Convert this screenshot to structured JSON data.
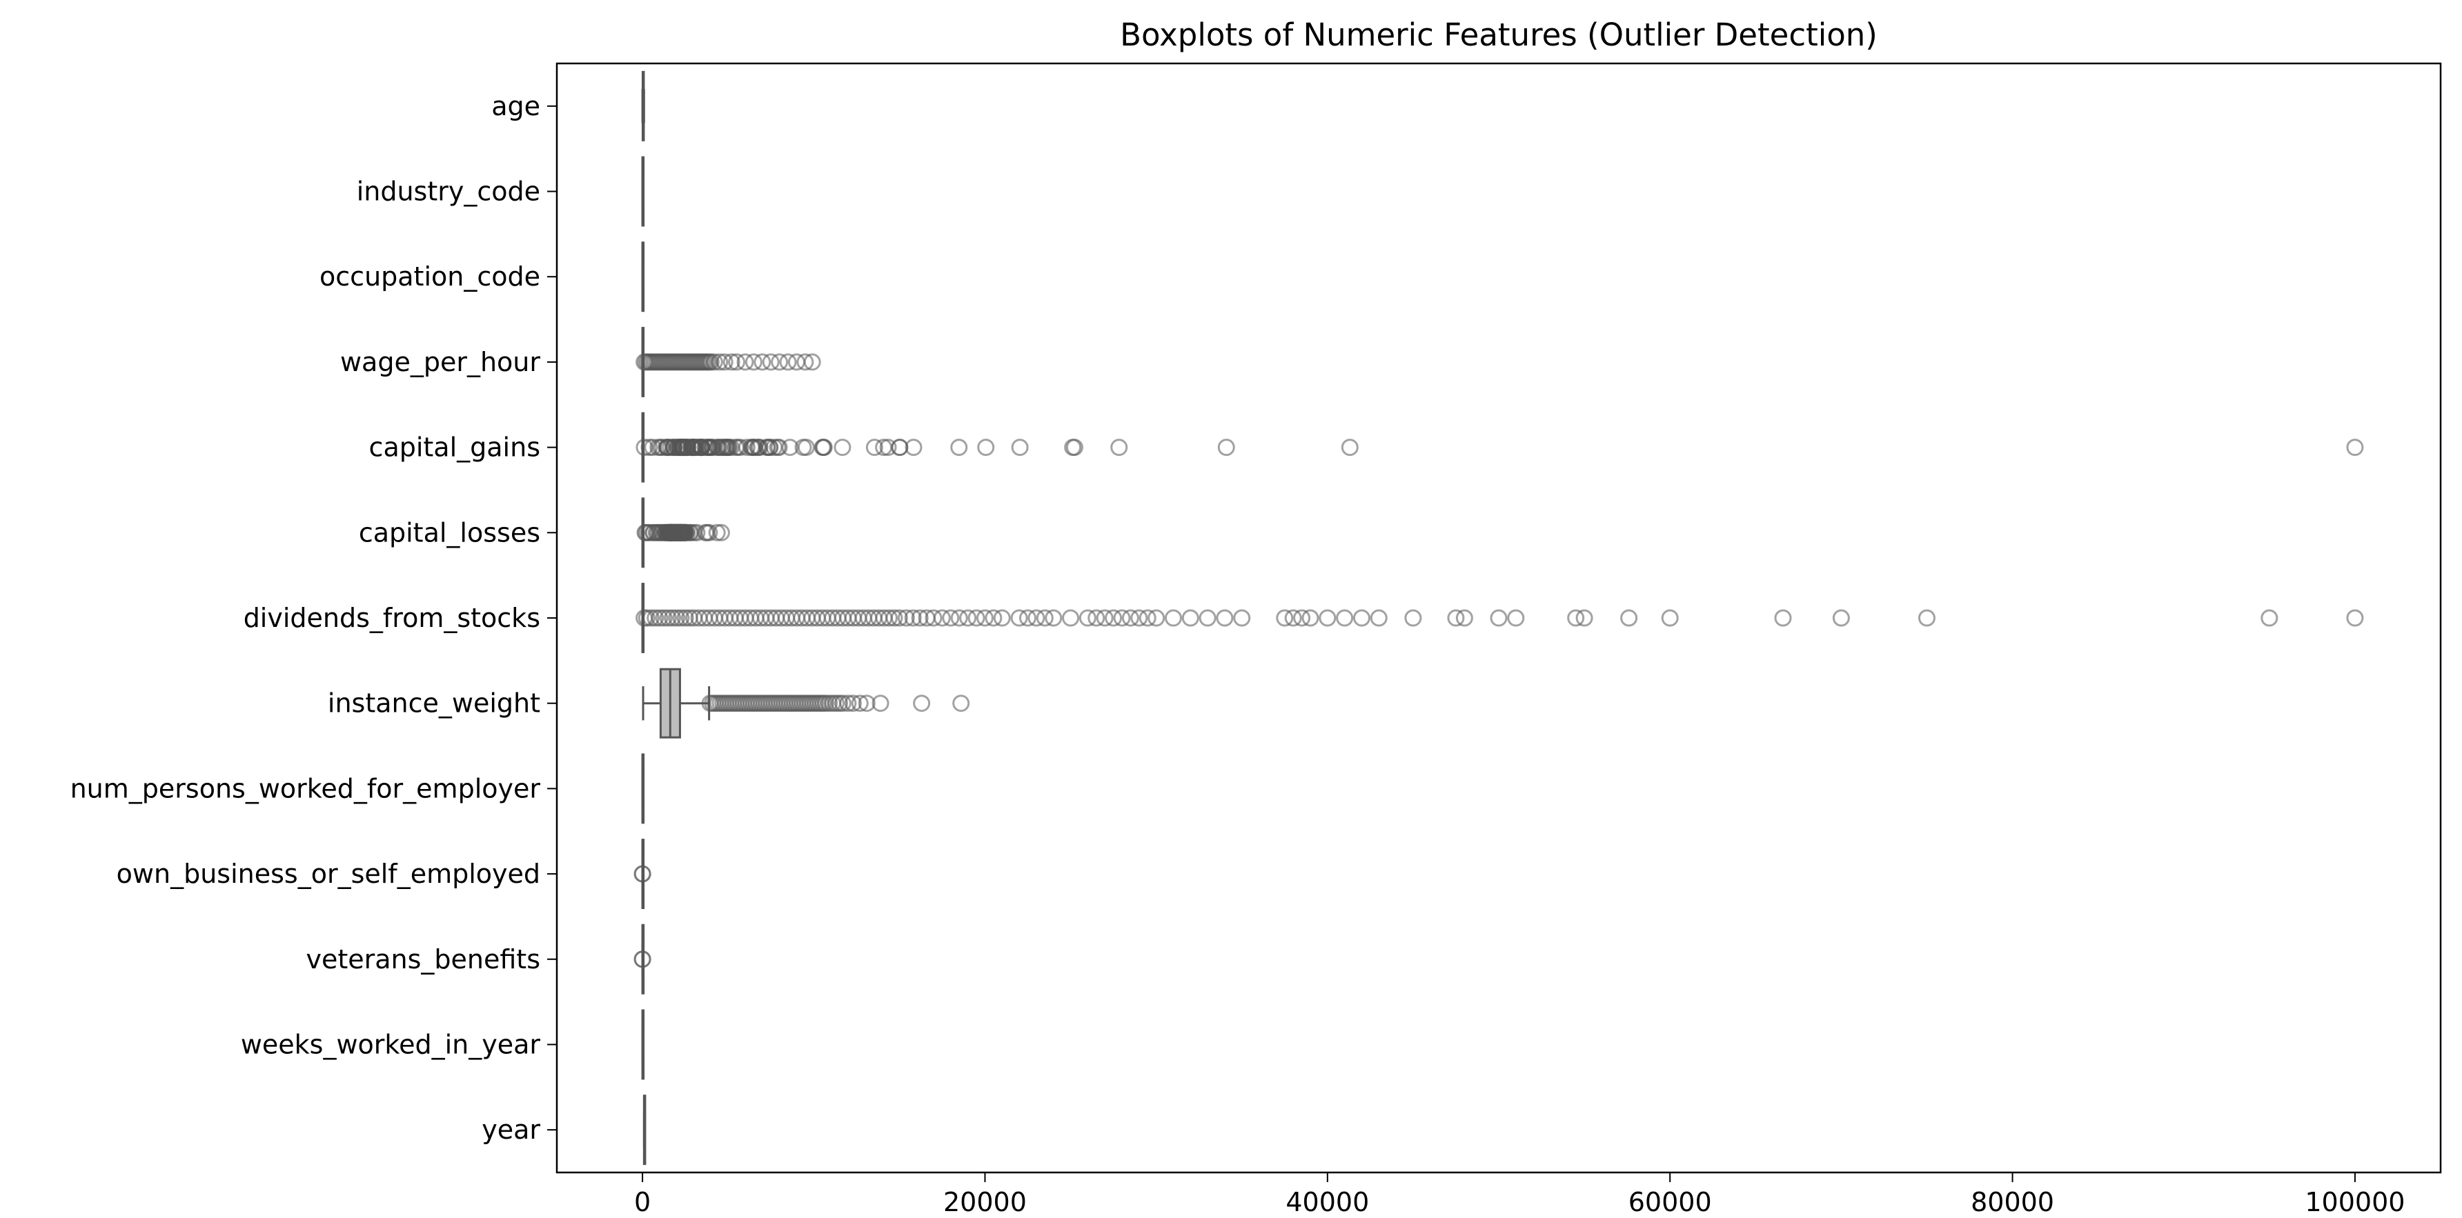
{
  "chart_data": {
    "type": "boxplot",
    "orientation": "horizontal",
    "title": "Boxplots of Numeric Features (Outlier Detection)",
    "xlabel": "",
    "ylabel": "",
    "xlim": [
      -5000,
      105000
    ],
    "xticks": [
      0,
      20000,
      40000,
      60000,
      80000,
      100000
    ],
    "grid": false,
    "legend": "none",
    "colors": {
      "box_fill": "#bdbdbd",
      "line": "#555555",
      "outlier_stroke": "#555555",
      "axis": "#000000"
    },
    "features": [
      {
        "name": "age",
        "min": 0,
        "q1": 15,
        "median": 33,
        "q3": 50,
        "max": 90,
        "outliers": []
      },
      {
        "name": "industry_code",
        "min": 0,
        "q1": 0,
        "median": 0,
        "q3": 33,
        "max": 51,
        "outliers": []
      },
      {
        "name": "occupation_code",
        "min": 0,
        "q1": 0,
        "median": 0,
        "q3": 26,
        "max": 46,
        "outliers": []
      },
      {
        "name": "wage_per_hour",
        "min": 0,
        "q1": 0,
        "median": 0,
        "q3": 0,
        "max": 0,
        "outliers": [
          100,
          200,
          300,
          400,
          500,
          600,
          700,
          800,
          900,
          1000,
          1100,
          1200,
          1300,
          1400,
          1500,
          1600,
          1700,
          1800,
          1900,
          2000,
          2100,
          2200,
          2300,
          2400,
          2500,
          2600,
          2700,
          2800,
          2900,
          3000,
          3100,
          3200,
          3300,
          3400,
          3500,
          3600,
          3700,
          3800,
          3900,
          4000,
          4200,
          4500,
          4800,
          5200,
          5500,
          6000,
          6500,
          7000,
          7500,
          8000,
          8500,
          9000,
          9500,
          9917
        ]
      },
      {
        "name": "capital_gains",
        "min": 0,
        "q1": 0,
        "median": 0,
        "q3": 0,
        "max": 0,
        "outliers": [
          114,
          401,
          594,
          914,
          1055,
          1151,
          1409,
          1424,
          1471,
          1506,
          1639,
          1797,
          1831,
          1848,
          2009,
          2050,
          2105,
          2174,
          2176,
          2202,
          2228,
          2290,
          2329,
          2346,
          2354,
          2387,
          2407,
          2414,
          2463,
          2538,
          2580,
          2597,
          2635,
          2653,
          2829,
          2885,
          2907,
          2936,
          2961,
          2964,
          2977,
          2993,
          3103,
          3137,
          3273,
          3325,
          3411,
          3418,
          3432,
          3456,
          3464,
          3471,
          3674,
          3781,
          3818,
          3887,
          3908,
          3942,
          4064,
          4101,
          4386,
          4416,
          4508,
          4650,
          4687,
          4787,
          4865,
          4931,
          4934,
          5013,
          5060,
          5178,
          5455,
          5556,
          5721,
          6097,
          6360,
          6418,
          6497,
          6514,
          6723,
          6767,
          6849,
          7262,
          7298,
          7430,
          7443,
          7688,
          7896,
          7978,
          8614,
          9386,
          9562,
          10520,
          10566,
          10605,
          11678,
          13550,
          14084,
          14344,
          15020,
          15024,
          15831,
          18481,
          20051,
          22040,
          25124,
          25236,
          27828,
          34095,
          41310,
          99999
        ]
      },
      {
        "name": "capital_losses",
        "min": 0,
        "q1": 0,
        "median": 0,
        "q3": 0,
        "max": 0,
        "outliers": [
          155,
          213,
          323,
          419,
          625,
          653,
          810,
          880,
          974,
          1092,
          1138,
          1258,
          1340,
          1380,
          1408,
          1411,
          1485,
          1504,
          1539,
          1564,
          1573,
          1579,
          1590,
          1594,
          1602,
          1617,
          1628,
          1648,
          1651,
          1668,
          1669,
          1672,
          1719,
          1721,
          1726,
          1735,
          1740,
          1741,
          1755,
          1762,
          1816,
          1825,
          1844,
          1848,
          1876,
          1887,
          1902,
          1911,
          1944,
          1974,
          1977,
          1980,
          2001,
          2002,
          2042,
          2051,
          2057,
          2080,
          2129,
          2149,
          2163,
          2174,
          2179,
          2201,
          2206,
          2231,
          2238,
          2246,
          2258,
          2267,
          2282,
          2339,
          2352,
          2377,
          2392,
          2415,
          2444,
          2457,
          2467,
          2472,
          2489,
          2559,
          2603,
          2754,
          2824,
          3004,
          3175,
          3683,
          3770,
          3900,
          4356,
          4608
        ]
      },
      {
        "name": "dividends_from_stocks",
        "min": 0,
        "q1": 0,
        "median": 0,
        "q3": 0,
        "max": 0,
        "outliers": [
          100,
          250,
          500,
          750,
          1000,
          1250,
          1500,
          1750,
          2000,
          2250,
          2500,
          2750,
          3000,
          3300,
          3600,
          3900,
          4200,
          4500,
          4800,
          5100,
          5400,
          5700,
          6000,
          6300,
          6600,
          6900,
          7200,
          7500,
          7800,
          8100,
          8400,
          8700,
          9000,
          9300,
          9600,
          9900,
          10200,
          10500,
          10800,
          11100,
          11400,
          11700,
          12000,
          12300,
          12600,
          12900,
          13200,
          13500,
          13800,
          14100,
          14400,
          14700,
          15000,
          15400,
          15800,
          16200,
          16600,
          17000,
          17500,
          18000,
          18500,
          19000,
          19500,
          20000,
          20500,
          21000,
          22000,
          22500,
          23000,
          23500,
          24000,
          25000,
          26000,
          26500,
          27000,
          27500,
          28000,
          28500,
          29000,
          29500,
          30000,
          31000,
          32000,
          33000,
          34000,
          35000,
          37500,
          38000,
          38500,
          39000,
          40000,
          41000,
          42000,
          43000,
          45000,
          47500,
          48000,
          50000,
          51000,
          54500,
          55000,
          57600,
          60000,
          66600,
          70000,
          75000,
          95000,
          99999
        ]
      },
      {
        "name": "instance_weight",
        "min": 38,
        "q1": 1060,
        "median": 1620,
        "q3": 2190,
        "max": 3890,
        "outliers": [
          3950,
          4100,
          4250,
          4400,
          4550,
          4700,
          4850,
          5000,
          5150,
          5300,
          5450,
          5600,
          5750,
          5900,
          6050,
          6200,
          6350,
          6500,
          6650,
          6800,
          6950,
          7100,
          7250,
          7400,
          7550,
          7700,
          7850,
          8000,
          8150,
          8300,
          8450,
          8600,
          8750,
          8900,
          9050,
          9200,
          9350,
          9500,
          9650,
          9800,
          9950,
          10100,
          10250,
          10400,
          10550,
          10700,
          10900,
          11100,
          11300,
          11500,
          11700,
          12000,
          12300,
          12700,
          13100,
          13900,
          16300,
          18600
        ]
      },
      {
        "name": "num_persons_worked_for_employer",
        "min": 0,
        "q1": 0,
        "median": 1,
        "q3": 4,
        "max": 6,
        "outliers": []
      },
      {
        "name": "own_business_or_self_employed",
        "min": 0,
        "q1": 0,
        "median": 0,
        "q3": 0,
        "max": 0,
        "outliers": [
          1,
          2
        ]
      },
      {
        "name": "veterans_benefits",
        "min": 2,
        "q1": 2,
        "median": 2,
        "q3": 2,
        "max": 2,
        "outliers": [
          0,
          1
        ]
      },
      {
        "name": "weeks_worked_in_year",
        "min": 0,
        "q1": 0,
        "median": 8,
        "q3": 52,
        "max": 52,
        "outliers": []
      },
      {
        "name": "year",
        "min": 94,
        "q1": 94,
        "median": 94,
        "q3": 95,
        "max": 95,
        "outliers": []
      }
    ]
  }
}
